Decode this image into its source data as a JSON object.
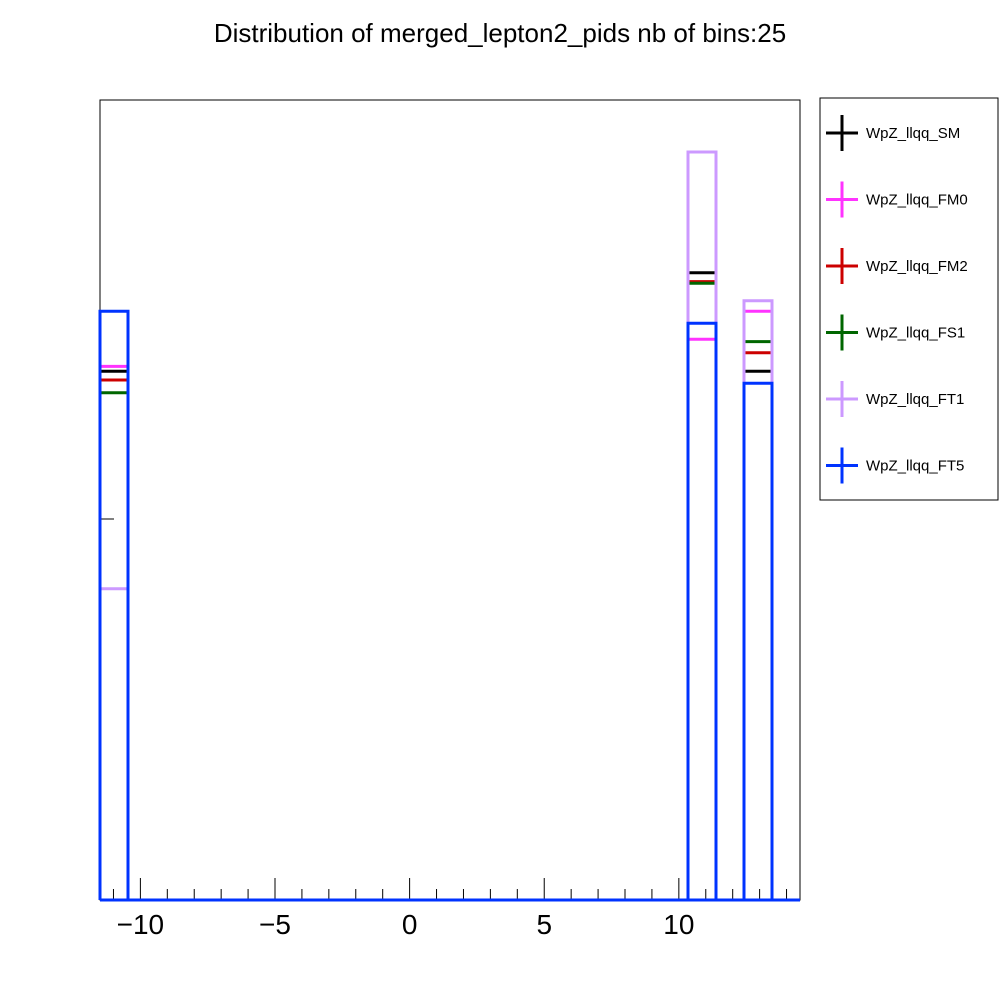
{
  "chart_data": {
    "type": "step-histogram",
    "title": "Distribution of merged_lepton2_pids nb of bins:25",
    "xlabel": "",
    "ylabel": "",
    "xlim": [
      -11.5,
      14.5
    ],
    "ylim": [
      0,
      1
    ],
    "bin_width": 1.04,
    "x_ticks": [
      -10,
      -5,
      0,
      5,
      10
    ],
    "x_tick_labels": [
      "−10",
      "−5",
      "0",
      "5",
      "10"
    ],
    "series": [
      {
        "name": "WpZ_llqq_SM",
        "color": "#000000",
        "bins": [
          {
            "x0": -11.5,
            "x1": -10.46,
            "y": 0.661
          },
          {
            "x0": 10.34,
            "x1": 11.38,
            "y": 0.784
          },
          {
            "x0": 12.42,
            "x1": 13.46,
            "y": 0.661
          }
        ]
      },
      {
        "name": "WpZ_llqq_FM0",
        "color": "#ff33ff",
        "bins": [
          {
            "x0": -11.5,
            "x1": -10.46,
            "y": 0.667
          },
          {
            "x0": 10.34,
            "x1": 11.38,
            "y": 0.701
          },
          {
            "x0": 12.42,
            "x1": 13.46,
            "y": 0.736
          }
        ]
      },
      {
        "name": "WpZ_llqq_FM2",
        "color": "#cc0000",
        "bins": [
          {
            "x0": -11.5,
            "x1": -10.46,
            "y": 0.65
          },
          {
            "x0": 10.34,
            "x1": 11.38,
            "y": 0.773
          },
          {
            "x0": 12.42,
            "x1": 13.46,
            "y": 0.684
          }
        ]
      },
      {
        "name": "WpZ_llqq_FS1",
        "color": "#006600",
        "bins": [
          {
            "x0": -11.5,
            "x1": -10.46,
            "y": 0.634
          },
          {
            "x0": 10.34,
            "x1": 11.38,
            "y": 0.771
          },
          {
            "x0": 12.42,
            "x1": 13.46,
            "y": 0.698
          }
        ]
      },
      {
        "name": "WpZ_llqq_FT1",
        "color": "#cc99ff",
        "bins": [
          {
            "x0": -11.5,
            "x1": -10.46,
            "y": 0.389
          },
          {
            "x0": 10.34,
            "x1": 11.38,
            "y": 0.935
          },
          {
            "x0": 12.42,
            "x1": 13.46,
            "y": 0.749
          }
        ]
      },
      {
        "name": "WpZ_llqq_FT5",
        "color": "#0033ff",
        "bins": [
          {
            "x0": -11.5,
            "x1": -10.46,
            "y": 0.736
          },
          {
            "x0": 10.34,
            "x1": 11.38,
            "y": 0.721
          },
          {
            "x0": 12.42,
            "x1": 13.46,
            "y": 0.646
          }
        ]
      }
    ],
    "legend_position": "right"
  }
}
